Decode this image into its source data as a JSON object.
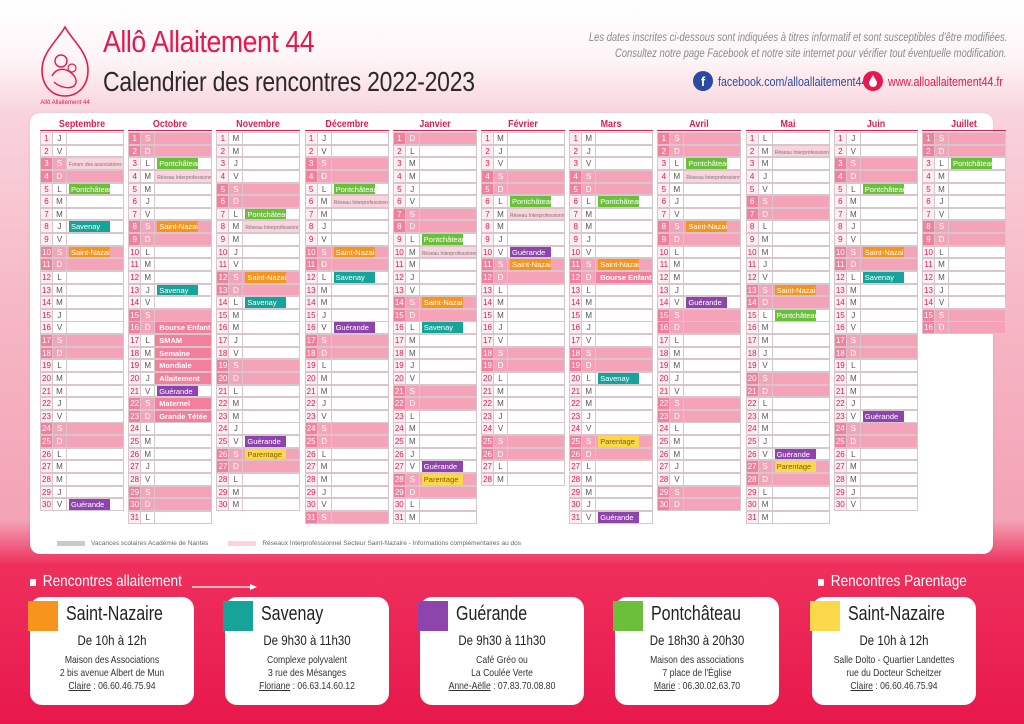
{
  "header": {
    "title": "Allô Allaitement 44",
    "subtitle": "Calendrier des rencontres 2022-2023",
    "logo_text": "Allô Allaitement 44",
    "disclaimer_line1": "Les dates inscrites ci-dessous sont indiquées à titres informatif et sont susceptibles d'être modifiées.",
    "disclaimer_line2": "Consultez notre page Facebook et notre site internet pour vérifier tout éventuelle modification.",
    "facebook": "facebook.com/alloallaitement44/",
    "website": "www.alloallaitement44.fr"
  },
  "colors": {
    "brand": "#e8184c",
    "saint_nazaire": "#f7941d",
    "savenay": "#16a39a",
    "guerande": "#8e44ad",
    "pontchateau": "#6cbf3b",
    "parentage": "#f9d94a",
    "weekend": "#f5a3b8",
    "reseau": "#fbd3dd",
    "vacances": "#c9c9c9"
  },
  "months": [
    {
      "name": "Septembre",
      "days": 30,
      "wd": [
        "J",
        "V",
        "S",
        "D",
        "L",
        "M",
        "M",
        "J",
        "V",
        "S",
        "D",
        "L",
        "M",
        "M",
        "J",
        "V",
        "S",
        "D",
        "L",
        "M",
        "M",
        "J",
        "V",
        "S",
        "D",
        "L",
        "M",
        "M",
        "J",
        "V"
      ]
    },
    {
      "name": "Octobre",
      "days": 31,
      "wd": [
        "S",
        "D",
        "L",
        "M",
        "M",
        "J",
        "V",
        "S",
        "D",
        "L",
        "M",
        "M",
        "J",
        "V",
        "S",
        "D",
        "L",
        "M",
        "M",
        "J",
        "V",
        "S",
        "D",
        "L",
        "M",
        "M",
        "J",
        "V",
        "S",
        "D",
        "L"
      ]
    },
    {
      "name": "Novembre",
      "days": 30,
      "wd": [
        "M",
        "M",
        "J",
        "V",
        "S",
        "D",
        "L",
        "M",
        "M",
        "J",
        "V",
        "S",
        "D",
        "L",
        "M",
        "M",
        "J",
        "V",
        "S",
        "D",
        "L",
        "M",
        "M",
        "J",
        "V",
        "S",
        "D",
        "L",
        "M",
        "M"
      ]
    },
    {
      "name": "Décembre",
      "days": 31,
      "wd": [
        "J",
        "V",
        "S",
        "D",
        "L",
        "M",
        "M",
        "J",
        "V",
        "S",
        "D",
        "L",
        "M",
        "M",
        "J",
        "V",
        "S",
        "D",
        "L",
        "M",
        "M",
        "J",
        "V",
        "S",
        "D",
        "L",
        "M",
        "M",
        "J",
        "V",
        "S"
      ]
    },
    {
      "name": "Janvier",
      "days": 31,
      "wd": [
        "D",
        "L",
        "M",
        "M",
        "J",
        "V",
        "S",
        "D",
        "L",
        "M",
        "M",
        "J",
        "V",
        "S",
        "D",
        "L",
        "M",
        "M",
        "J",
        "V",
        "S",
        "D",
        "L",
        "M",
        "M",
        "J",
        "V",
        "S",
        "D",
        "L",
        "M"
      ]
    },
    {
      "name": "Février",
      "days": 28,
      "wd": [
        "M",
        "J",
        "V",
        "S",
        "D",
        "L",
        "M",
        "M",
        "J",
        "V",
        "S",
        "D",
        "L",
        "M",
        "M",
        "J",
        "V",
        "S",
        "D",
        "L",
        "M",
        "M",
        "J",
        "V",
        "S",
        "D",
        "L",
        "M"
      ]
    },
    {
      "name": "Mars",
      "days": 31,
      "wd": [
        "M",
        "J",
        "V",
        "S",
        "D",
        "L",
        "M",
        "M",
        "J",
        "V",
        "S",
        "D",
        "L",
        "M",
        "M",
        "J",
        "V",
        "S",
        "D",
        "L",
        "M",
        "M",
        "J",
        "V",
        "S",
        "D",
        "L",
        "M",
        "M",
        "J",
        "V"
      ]
    },
    {
      "name": "Avril",
      "days": 30,
      "wd": [
        "S",
        "D",
        "L",
        "M",
        "M",
        "J",
        "V",
        "S",
        "D",
        "L",
        "M",
        "M",
        "J",
        "V",
        "S",
        "D",
        "L",
        "M",
        "M",
        "J",
        "V",
        "S",
        "D",
        "L",
        "M",
        "M",
        "J",
        "V",
        "S",
        "D"
      ]
    },
    {
      "name": "Mai",
      "days": 31,
      "wd": [
        "L",
        "M",
        "M",
        "J",
        "V",
        "S",
        "D",
        "L",
        "M",
        "M",
        "J",
        "V",
        "S",
        "D",
        "L",
        "M",
        "M",
        "J",
        "V",
        "S",
        "D",
        "L",
        "M",
        "M",
        "J",
        "V",
        "S",
        "D",
        "L",
        "M",
        "M"
      ]
    },
    {
      "name": "Juin",
      "days": 30,
      "wd": [
        "J",
        "V",
        "S",
        "D",
        "L",
        "M",
        "M",
        "J",
        "V",
        "S",
        "D",
        "L",
        "M",
        "M",
        "J",
        "V",
        "S",
        "D",
        "L",
        "M",
        "M",
        "J",
        "V",
        "S",
        "D",
        "L",
        "M",
        "M",
        "J",
        "V"
      ]
    },
    {
      "name": "Juillet",
      "days": 16,
      "wd": [
        "S",
        "D",
        "L",
        "M",
        "M",
        "J",
        "V",
        "S",
        "D",
        "L",
        "M",
        "M",
        "J",
        "V",
        "S",
        "D"
      ]
    }
  ],
  "events": [
    {
      "m": 0,
      "d": 3,
      "t": "Forum des associations",
      "k": "small"
    },
    {
      "m": 0,
      "d": 5,
      "t": "Pontchâteau",
      "k": "pontchateau"
    },
    {
      "m": 0,
      "d": 8,
      "t": "Savenay",
      "k": "savenay"
    },
    {
      "m": 0,
      "d": 10,
      "t": "Saint-Nazaire",
      "k": "saint_nazaire"
    },
    {
      "m": 0,
      "d": 30,
      "t": "Guérande",
      "k": "guerande"
    },
    {
      "m": 1,
      "d": 3,
      "t": "Pontchâteau",
      "k": "pontchateau"
    },
    {
      "m": 1,
      "d": 4,
      "t": "Réseau Interprofessionnel",
      "k": "small"
    },
    {
      "m": 1,
      "d": 8,
      "t": "Saint-Nazaire",
      "k": "saint_nazaire"
    },
    {
      "m": 1,
      "d": 13,
      "t": "Savenay",
      "k": "savenay"
    },
    {
      "m": 1,
      "d": 16,
      "t": "Bourse Enfants",
      "k": "red"
    },
    {
      "m": 1,
      "d": 17,
      "t": "SMAM",
      "k": "red"
    },
    {
      "m": 1,
      "d": 18,
      "t": "Semaine",
      "k": "red"
    },
    {
      "m": 1,
      "d": 19,
      "t": "Mondiale",
      "k": "red"
    },
    {
      "m": 1,
      "d": 20,
      "t": "Allaitement",
      "k": "red"
    },
    {
      "m": 1,
      "d": 21,
      "t": "Guérande",
      "k": "guerande"
    },
    {
      "m": 1,
      "d": 22,
      "t": "Maternel",
      "k": "red"
    },
    {
      "m": 1,
      "d": 23,
      "t": "Grande Tétée",
      "k": "red"
    },
    {
      "m": 2,
      "d": 7,
      "t": "Pontchâteau",
      "k": "pontchateau"
    },
    {
      "m": 2,
      "d": 8,
      "t": "Réseau Interprofessionnel",
      "k": "small"
    },
    {
      "m": 2,
      "d": 12,
      "t": "Saint-Nazaire",
      "k": "saint_nazaire"
    },
    {
      "m": 2,
      "d": 14,
      "t": "Savenay",
      "k": "savenay"
    },
    {
      "m": 2,
      "d": 25,
      "t": "Guérande",
      "k": "guerande"
    },
    {
      "m": 2,
      "d": 26,
      "t": "Parentage",
      "k": "parentage"
    },
    {
      "m": 3,
      "d": 5,
      "t": "Pontchâteau",
      "k": "pontchateau"
    },
    {
      "m": 3,
      "d": 6,
      "t": "Réseau Interprofessionnel",
      "k": "small"
    },
    {
      "m": 3,
      "d": 10,
      "t": "Saint-Nazaire",
      "k": "saint_nazaire"
    },
    {
      "m": 3,
      "d": 12,
      "t": "Savenay",
      "k": "savenay"
    },
    {
      "m": 3,
      "d": 16,
      "t": "Guérande",
      "k": "guerande"
    },
    {
      "m": 4,
      "d": 9,
      "t": "Pontchâteau",
      "k": "pontchateau"
    },
    {
      "m": 4,
      "d": 10,
      "t": "Réseau Interprofessionnel",
      "k": "small"
    },
    {
      "m": 4,
      "d": 14,
      "t": "Saint-Nazaire",
      "k": "saint_nazaire"
    },
    {
      "m": 4,
      "d": 16,
      "t": "Savenay",
      "k": "savenay"
    },
    {
      "m": 4,
      "d": 27,
      "t": "Guérande",
      "k": "guerande"
    },
    {
      "m": 4,
      "d": 28,
      "t": "Parentage",
      "k": "parentage"
    },
    {
      "m": 5,
      "d": 6,
      "t": "Pontchâteau/Savenay",
      "k": "pontchateau"
    },
    {
      "m": 5,
      "d": 7,
      "t": "Réseau Interprofessionnel",
      "k": "small"
    },
    {
      "m": 5,
      "d": 10,
      "t": "Guérande",
      "k": "guerande"
    },
    {
      "m": 5,
      "d": 11,
      "t": "Saint-Nazaire",
      "k": "saint_nazaire"
    },
    {
      "m": 6,
      "d": 6,
      "t": "Pontchâteau",
      "k": "pontchateau"
    },
    {
      "m": 6,
      "d": 11,
      "t": "Saint-Nazaire",
      "k": "saint_nazaire"
    },
    {
      "m": 6,
      "d": 12,
      "t": "Bourse Enfants",
      "k": "red"
    },
    {
      "m": 6,
      "d": 20,
      "t": "Savenay",
      "k": "savenay"
    },
    {
      "m": 6,
      "d": 25,
      "t": "Parentage",
      "k": "parentage"
    },
    {
      "m": 6,
      "d": 31,
      "t": "Guérande",
      "k": "guerande"
    },
    {
      "m": 7,
      "d": 3,
      "t": "Pontchâteau/Savenay",
      "k": "pontchateau"
    },
    {
      "m": 7,
      "d": 4,
      "t": "Réseau Interprofessionnel",
      "k": "small"
    },
    {
      "m": 7,
      "d": 8,
      "t": "Saint-Nazaire",
      "k": "saint_nazaire"
    },
    {
      "m": 7,
      "d": 14,
      "t": "Guérande",
      "k": "guerande"
    },
    {
      "m": 8,
      "d": 2,
      "t": "Réseau Interprofessionnel",
      "k": "small"
    },
    {
      "m": 8,
      "d": 13,
      "t": "Saint-Nazaire",
      "k": "saint_nazaire"
    },
    {
      "m": 8,
      "d": 15,
      "t": "Pontchâteau/Savenay",
      "k": "pontchateau"
    },
    {
      "m": 8,
      "d": 26,
      "t": "Guérande",
      "k": "guerande"
    },
    {
      "m": 8,
      "d": 27,
      "t": "Parentage",
      "k": "parentage"
    },
    {
      "m": 9,
      "d": 5,
      "t": "Pontchâteau",
      "k": "pontchateau"
    },
    {
      "m": 9,
      "d": 10,
      "t": "Saint-Nazaire",
      "k": "saint_nazaire"
    },
    {
      "m": 9,
      "d": 12,
      "t": "Savenay",
      "k": "savenay"
    },
    {
      "m": 9,
      "d": 23,
      "t": "Guérande",
      "k": "guerande"
    },
    {
      "m": 10,
      "d": 3,
      "t": "Pontchâteau",
      "k": "pontchateau"
    }
  ],
  "legend": {
    "vacances": "Vacances scolaires Académie de Nantes",
    "reseau": "Réseaux Interprofessionnel Secteur Saint-Nazaire - Informations complémentaires au dos"
  },
  "sections": {
    "allaitement": "Rencontres allaitement",
    "parentage": "Rencontres Parentage"
  },
  "cards": [
    {
      "name": "Saint-Nazaire",
      "color": "#f7941d",
      "time": "De 10h à 12h",
      "lines": [
        "Maison des Associations",
        "2 bis avenue Albert de Mun"
      ],
      "contact": "Claire",
      "phone": " : 06.60.46.75.94"
    },
    {
      "name": "Savenay",
      "color": "#16a39a",
      "time": "De 9h30 à 11h30",
      "lines": [
        "Complexe polyvalent",
        "3 rue des Mésanges"
      ],
      "contact": "Floriane",
      "phone": " : 06.63.14.60.12"
    },
    {
      "name": "Guérande",
      "color": "#8e44ad",
      "time": "De 9h30 à 11h30",
      "lines": [
        "Café Gréo ou",
        "La Coulée Verte"
      ],
      "contact": "Anne-Aëlle",
      "phone": " : 07.83.70.08.80"
    },
    {
      "name": "Pontchâteau",
      "color": "#6cbf3b",
      "time": "De 18h30 à 20h30",
      "lines": [
        "Maison des associations",
        "7 place de l'Église"
      ],
      "contact": "Marie",
      "phone": " : 06.30.02.63.70"
    },
    {
      "name": "Saint-Nazaire",
      "color": "#f9d94a",
      "time": "De 10h à 12h",
      "lines": [
        "Salle Dolto - Quartier Landettes",
        "rue du Docteur Scheitzer"
      ],
      "contact": "Claire",
      "phone": " : 06.60.46.75.94"
    }
  ]
}
